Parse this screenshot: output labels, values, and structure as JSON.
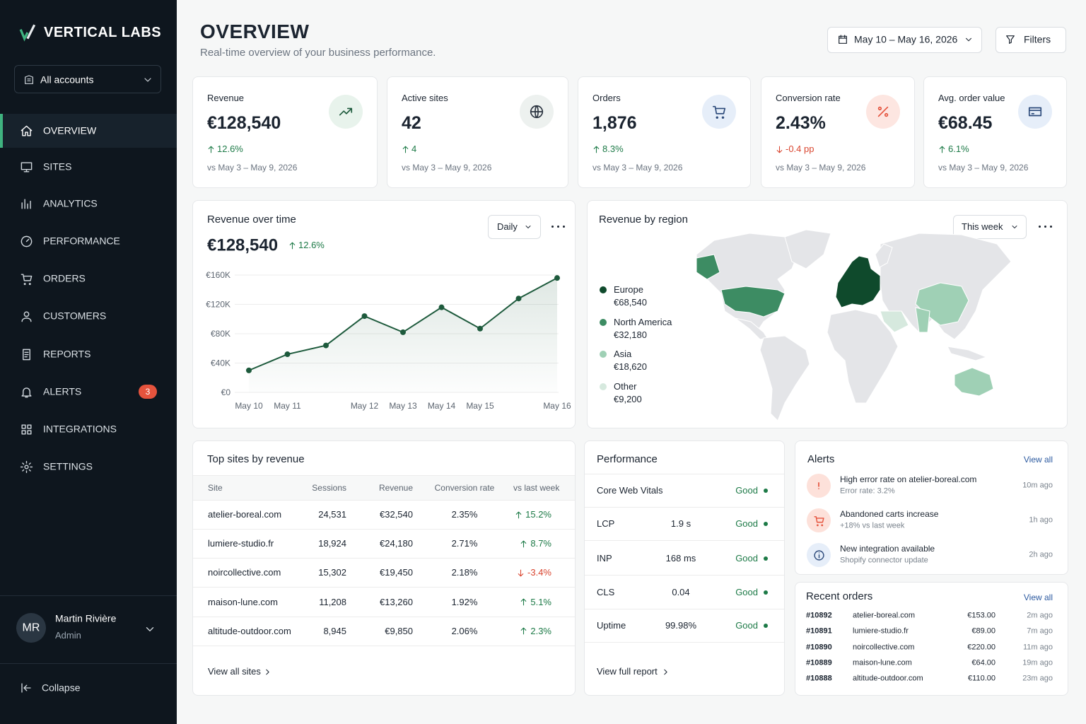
{
  "sidebar": {
    "brand": "VERTICAL LABS",
    "account": "All accounts",
    "nav": [
      {
        "label": "OVERVIEW"
      },
      {
        "label": "SITES"
      },
      {
        "label": "ANALYTICS"
      },
      {
        "label": "PERFORMANCE"
      },
      {
        "label": "ORDERS"
      },
      {
        "label": "CUSTOMERS"
      },
      {
        "label": "REPORTS"
      },
      {
        "label": "ALERTS",
        "badge": 3
      },
      {
        "label": "INTEGRATIONS"
      },
      {
        "label": "SETTINGS"
      }
    ],
    "user": {
      "initials": "MR",
      "name": "Martin Rivière",
      "role": "Admin"
    },
    "collapse": "Collapse"
  },
  "header": {
    "title": "OVERVIEW",
    "subtitle": "Real-time overview of your business performance.",
    "date_range": "May 10 – May 16, 2026",
    "filters": "Filters"
  },
  "kpis": [
    {
      "label": "Revenue",
      "value": "€128,540",
      "change": "12.6%",
      "compare": "vs May 3 – May 9, 2026"
    },
    {
      "label": "Active sites",
      "value": "42",
      "change": "4",
      "compare": "vs May 3 – May 9, 2026"
    },
    {
      "label": "Orders",
      "value": "1,876",
      "change": "8.3%",
      "compare": "vs May 3 – May 9, 2026"
    },
    {
      "label": "Conversion rate",
      "value": "2.43%",
      "change": "-0.4 pp",
      "compare": "vs May 3 – May 9, 2026"
    },
    {
      "label": "Avg. order value",
      "value": "€68.45",
      "change": "6.1%",
      "compare": "vs May 3 – May 9, 2026"
    }
  ],
  "chart_data": {
    "type": "line",
    "title": "Revenue over time",
    "total": "€128,540",
    "change": "12.6%",
    "period": "Daily",
    "categories": [
      "May 10",
      "May 11",
      null,
      "May 12",
      "May 13",
      "May 14",
      "May 15",
      null,
      "May 16"
    ],
    "values": [
      30000,
      52000,
      64000,
      104000,
      82000,
      116000,
      87000,
      128000,
      156000
    ],
    "ylim": [
      0,
      160000
    ],
    "yticks": [
      {
        "value": 0,
        "label": "€0"
      },
      {
        "value": 40000,
        "label": "€40K"
      },
      {
        "value": 80000,
        "label": "€80K"
      },
      {
        "value": 120000,
        "label": "€120K"
      },
      {
        "value": 160000,
        "label": "€160K"
      }
    ],
    "color": "#1d5a3c",
    "grid": true
  },
  "regions": {
    "title": "Revenue by region",
    "period": "This week",
    "items": [
      {
        "name": "Europe",
        "value": "€68,540",
        "color": "#0f4a2c"
      },
      {
        "name": "North America",
        "value": "€32,180",
        "color": "#3d8c63"
      },
      {
        "name": "Asia",
        "value": "€18,620",
        "color": "#9fd0b5"
      },
      {
        "name": "Other",
        "value": "€9,200",
        "color": "#d6e9de"
      }
    ]
  },
  "top_sites": {
    "title": "Top sites by revenue",
    "columns": [
      "Site",
      "Sessions",
      "Revenue",
      "Conversion rate",
      "vs last week"
    ],
    "rows": [
      [
        "atelier-boreal.com",
        "24,531",
        "€32,540",
        "2.35%",
        "15.2%"
      ],
      [
        "lumiere-studio.fr",
        "18,924",
        "€24,180",
        "2.71%",
        "8.7%"
      ],
      [
        "noircollective.com",
        "15,302",
        "€19,450",
        "2.18%",
        "-3.4%"
      ],
      [
        "maison-lune.com",
        "11,208",
        "€13,260",
        "1.92%",
        "5.1%"
      ],
      [
        "altitude-outdoor.com",
        "8,945",
        "€9,850",
        "2.06%",
        "2.3%"
      ]
    ],
    "link": "View all sites"
  },
  "performance": {
    "title": "Performance",
    "rows": [
      {
        "metric": "Core Web Vitals",
        "status": "Good"
      },
      {
        "metric": "LCP",
        "value": "1.9 s",
        "status": "Good"
      },
      {
        "metric": "INP",
        "value": "168 ms",
        "status": "Good"
      },
      {
        "metric": "CLS",
        "value": "0.04",
        "status": "Good"
      },
      {
        "metric": "Uptime",
        "value": "99.98%",
        "status": "Good"
      }
    ],
    "link": "View full report"
  },
  "alerts": {
    "title": "Alerts",
    "view_all": "View all",
    "items": [
      {
        "title": "High error rate on atelier-boreal.com",
        "detail": "Error rate: 3.2%",
        "time": "10m ago"
      },
      {
        "title": "Abandoned carts increase",
        "detail": "+18% vs last week",
        "time": "1h ago"
      },
      {
        "title": "New integration available",
        "detail": "Shopify connector update",
        "time": "2h ago"
      }
    ]
  },
  "recent_orders": {
    "title": "Recent orders",
    "view_all": "View all",
    "rows": [
      [
        "#10892",
        "atelier-boreal.com",
        "€153.00",
        "2m ago"
      ],
      [
        "#10891",
        "lumiere-studio.fr",
        "€89.00",
        "7m ago"
      ],
      [
        "#10890",
        "noircollective.com",
        "€220.00",
        "11m ago"
      ],
      [
        "#10889",
        "maison-lune.com",
        "€64.00",
        "19m ago"
      ],
      [
        "#10888",
        "altitude-outdoor.com",
        "€110.00",
        "23m ago"
      ]
    ]
  }
}
